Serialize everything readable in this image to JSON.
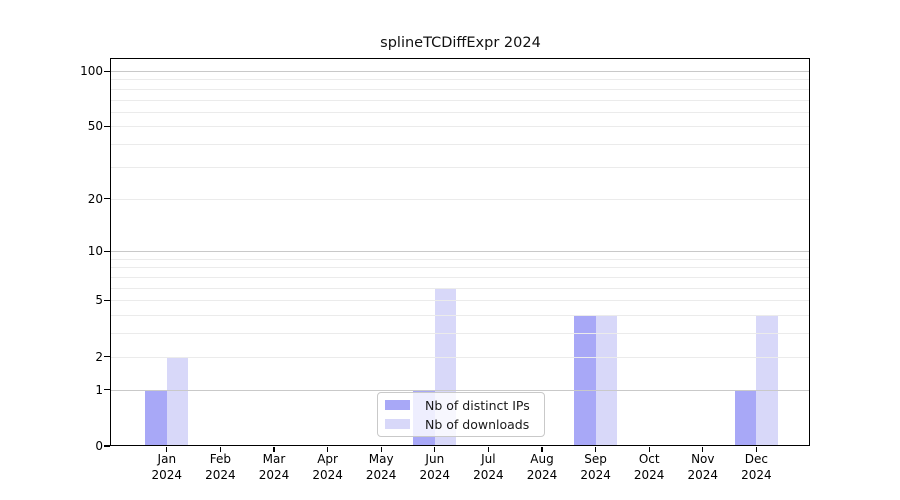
{
  "chart_data": {
    "type": "bar",
    "title": "splineTCDiffExpr 2024",
    "categories": [
      "Jan",
      "Feb",
      "Mar",
      "Apr",
      "May",
      "Jun",
      "Jul",
      "Aug",
      "Sep",
      "Oct",
      "Nov",
      "Dec"
    ],
    "x_year": "2024",
    "series": [
      {
        "name": "Nb of distinct IPs",
        "color": "#a8a8f7",
        "values": [
          1,
          0,
          0,
          0,
          0,
          1,
          0,
          0,
          4,
          0,
          0,
          1
        ]
      },
      {
        "name": "Nb of downloads",
        "color": "#d8d8f9",
        "values": [
          2,
          0,
          0,
          0,
          0,
          6,
          0,
          0,
          4,
          0,
          0,
          4
        ]
      }
    ],
    "yscale": "log1p",
    "ylim": [
      0,
      116
    ],
    "yticks": [
      0,
      1,
      2,
      5,
      10,
      20,
      50,
      100
    ],
    "major_gridlines": [
      1,
      10,
      100
    ],
    "minor_gridlines": [
      2,
      3,
      4,
      5,
      6,
      7,
      8,
      9,
      20,
      30,
      40,
      50,
      60,
      70,
      80,
      90
    ],
    "grid": true,
    "legend_position": "lower center"
  }
}
